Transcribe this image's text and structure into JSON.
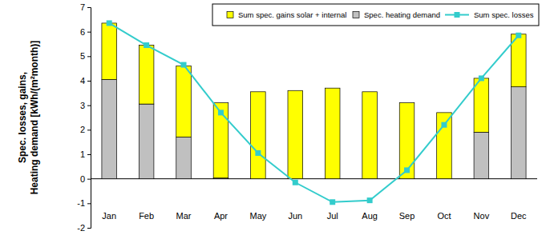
{
  "chart_data": {
    "type": "bar",
    "stacked": true,
    "legend": "top",
    "y_label": [
      "Spec. losses,  gains,",
      "Heating demand [kWh/(m²month)]"
    ],
    "categories": [
      "Jan",
      "Feb",
      "Mar",
      "Apr",
      "May",
      "Jun",
      "Jul",
      "Aug",
      "Sep",
      "Oct",
      "Nov",
      "Dec"
    ],
    "series": [
      {
        "name": "Sum spec. gains solar + internal",
        "type": "bar",
        "color": "#ffff00",
        "values": [
          2.3,
          2.4,
          2.9,
          3.07,
          3.55,
          3.6,
          3.7,
          3.55,
          3.1,
          2.7,
          2.2,
          2.15
        ]
      },
      {
        "name": "Spec. heating demand",
        "type": "bar",
        "color": "#c0c0c0",
        "values": [
          4.05,
          3.05,
          1.7,
          0.03,
          0,
          0,
          0,
          0,
          0,
          0,
          1.9,
          3.75
        ]
      },
      {
        "name": "Sum spec. losses",
        "type": "line",
        "color": "#33cccc",
        "marker": "square",
        "line_style": "solid",
        "values": [
          6.35,
          5.45,
          4.65,
          2.7,
          1.05,
          -0.15,
          -0.95,
          -0.88,
          0.35,
          2.2,
          4.1,
          5.85
        ]
      }
    ],
    "ylim": [
      -2,
      7
    ],
    "yticks": [
      -2,
      -1,
      0,
      1,
      2,
      3,
      4,
      5,
      6,
      7
    ],
    "grid": false
  }
}
